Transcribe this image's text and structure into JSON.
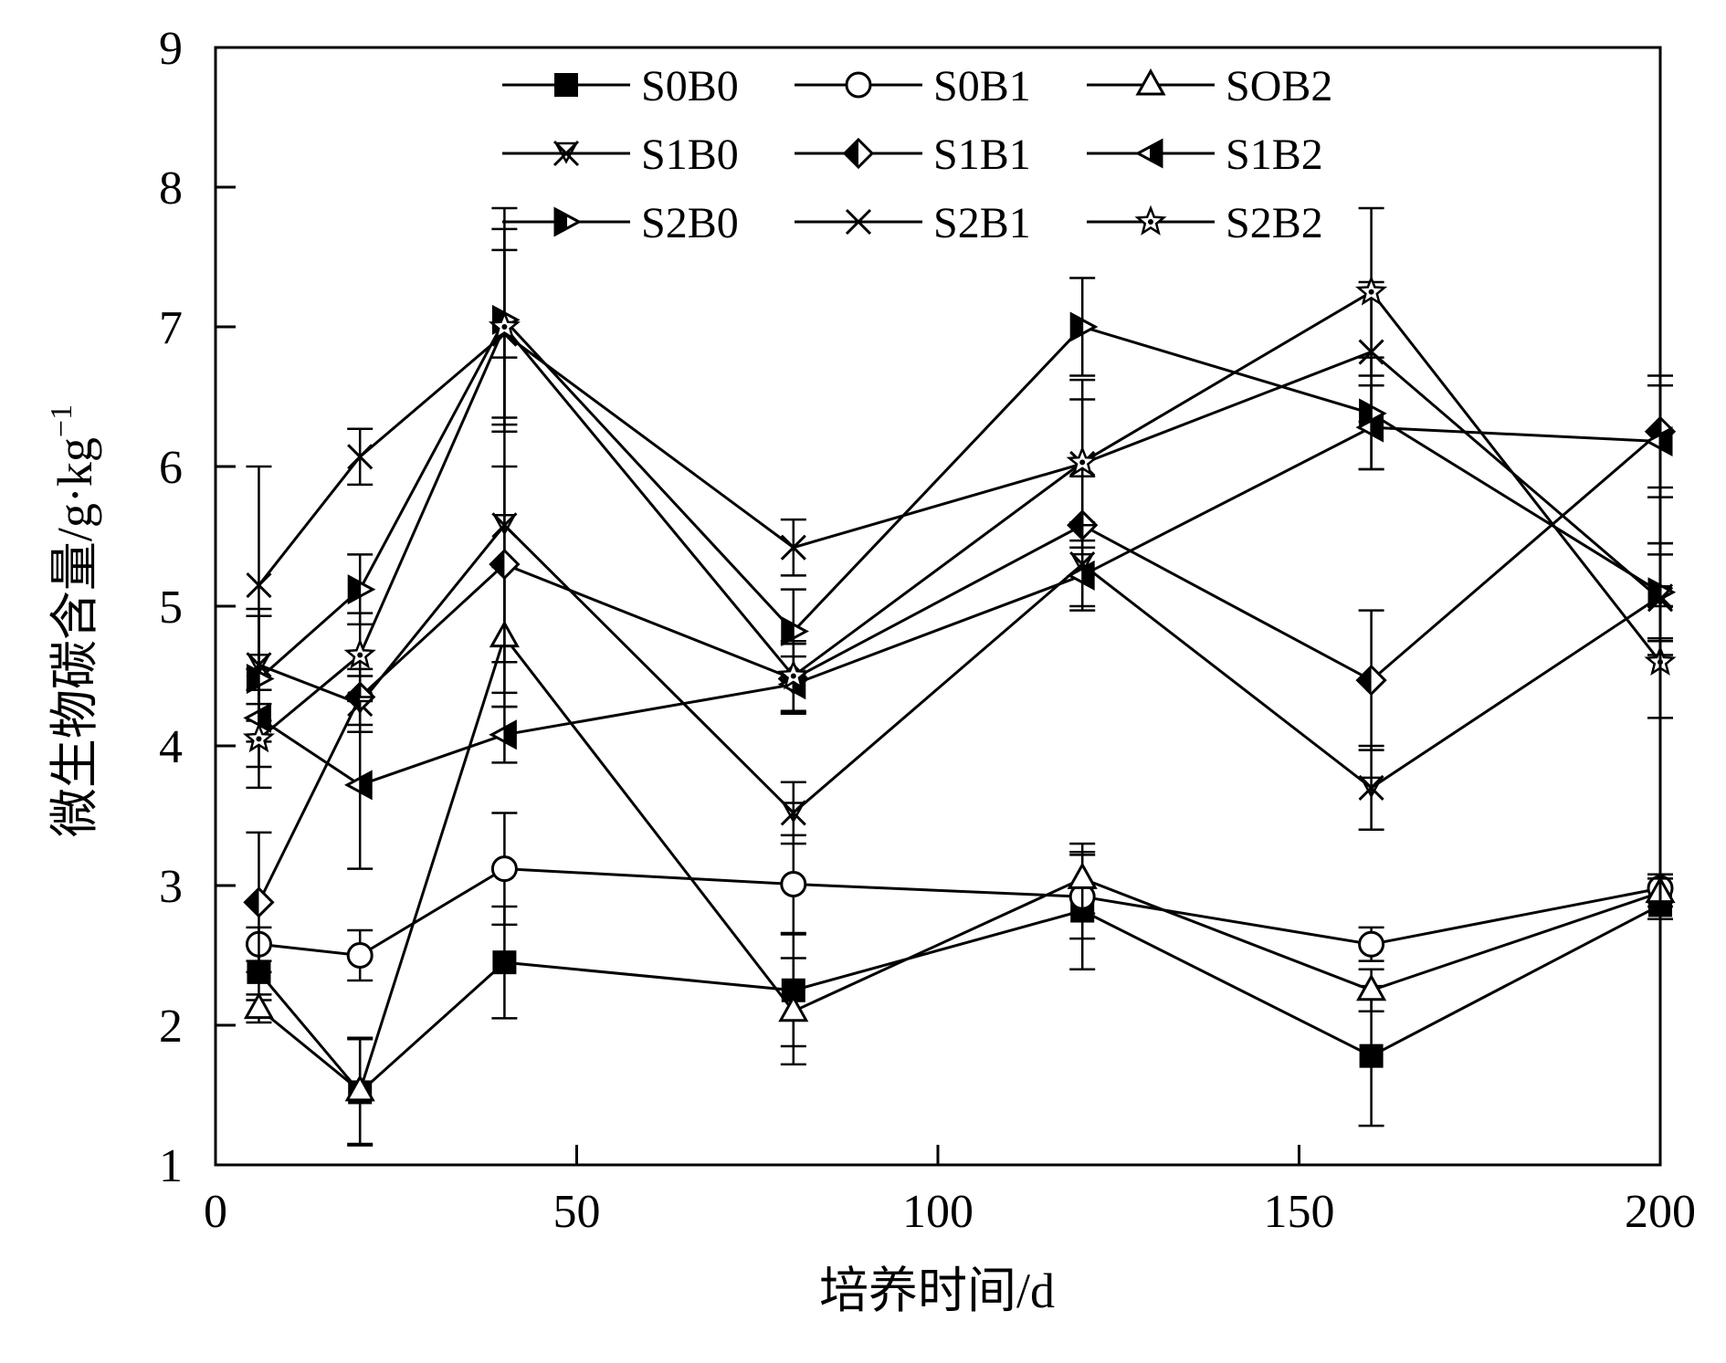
{
  "chart_data": {
    "type": "line",
    "xlabel": "培养时间/d",
    "ylabel_main": "微生物碳含量/g·kg",
    "ylabel_sup": "−1",
    "xlim": [
      0,
      200
    ],
    "ylim": [
      1,
      9
    ],
    "xticks": [
      0,
      50,
      100,
      150,
      200
    ],
    "xtick_labels": [
      "0",
      "50",
      "100",
      "150",
      "200"
    ],
    "yticks": [
      1,
      2,
      3,
      4,
      5,
      6,
      7,
      8,
      9
    ],
    "ytick_labels": [
      "1",
      "2",
      "3",
      "4",
      "5",
      "6",
      "7",
      "8",
      "9"
    ],
    "grid": false,
    "legend_position": "top",
    "x": [
      6,
      20,
      40,
      80,
      120,
      160,
      200
    ],
    "series": [
      {
        "name": "S0B0",
        "marker": "square-filled",
        "values": [
          2.38,
          1.52,
          2.45,
          2.25,
          2.82,
          1.78,
          2.86
        ],
        "errors": [
          0.2,
          0.38,
          0.4,
          0.4,
          0.42,
          0.5,
          0.1
        ]
      },
      {
        "name": "S0B1",
        "marker": "circle-open",
        "values": [
          2.58,
          2.5,
          3.12,
          3.01,
          2.92,
          2.58,
          2.98
        ],
        "errors": [
          0.12,
          0.18,
          0.4,
          0.35,
          0.3,
          0.12,
          0.1
        ]
      },
      {
        "name": "SOB2",
        "marker": "triangle-up-open",
        "values": [
          2.12,
          1.53,
          4.78,
          2.1,
          3.05,
          2.25,
          2.95
        ],
        "errors": [
          0.1,
          0.38,
          0.5,
          0.38,
          0.25,
          0.15,
          0.1
        ]
      },
      {
        "name": "S1B0",
        "marker": "x-triangle",
        "values": [
          4.58,
          4.3,
          5.58,
          3.52,
          5.3,
          3.7,
          5.07
        ],
        "errors": [
          0.4,
          0.2,
          1.2,
          0.22,
          0.3,
          0.3,
          0.3
        ]
      },
      {
        "name": "S1B1",
        "marker": "diamond-half",
        "values": [
          2.88,
          4.35,
          5.3,
          4.48,
          5.58,
          4.47,
          6.25
        ],
        "errors": [
          0.5,
          0.2,
          0.7,
          0.25,
          0.35,
          0.5,
          0.4
        ]
      },
      {
        "name": "S1B2",
        "marker": "triangle-left-half",
        "values": [
          4.2,
          3.72,
          4.08,
          4.44,
          5.22,
          6.28,
          6.18
        ],
        "errors": [
          0.35,
          0.6,
          0.2,
          0.2,
          0.25,
          0.3,
          0.4
        ]
      },
      {
        "name": "S2B0",
        "marker": "triangle-right-half",
        "values": [
          4.48,
          5.12,
          7.05,
          4.82,
          7.0,
          6.38,
          5.1
        ],
        "errors": [
          0.45,
          0.25,
          0.8,
          0.3,
          0.35,
          0.4,
          0.35
        ]
      },
      {
        "name": "S2B1",
        "marker": "x",
        "values": [
          5.15,
          6.07,
          6.95,
          5.42,
          6.02,
          6.82,
          5.05
        ],
        "errors": [
          0.85,
          0.2,
          0.6,
          0.2,
          0.6,
          0.5,
          0.4
        ]
      },
      {
        "name": "S2B2",
        "marker": "star",
        "values": [
          4.05,
          4.65,
          7.0,
          4.5,
          6.03,
          7.25,
          4.6
        ],
        "errors": [
          0.35,
          0.3,
          0.7,
          0.25,
          0.45,
          0.6,
          0.4
        ]
      }
    ]
  }
}
